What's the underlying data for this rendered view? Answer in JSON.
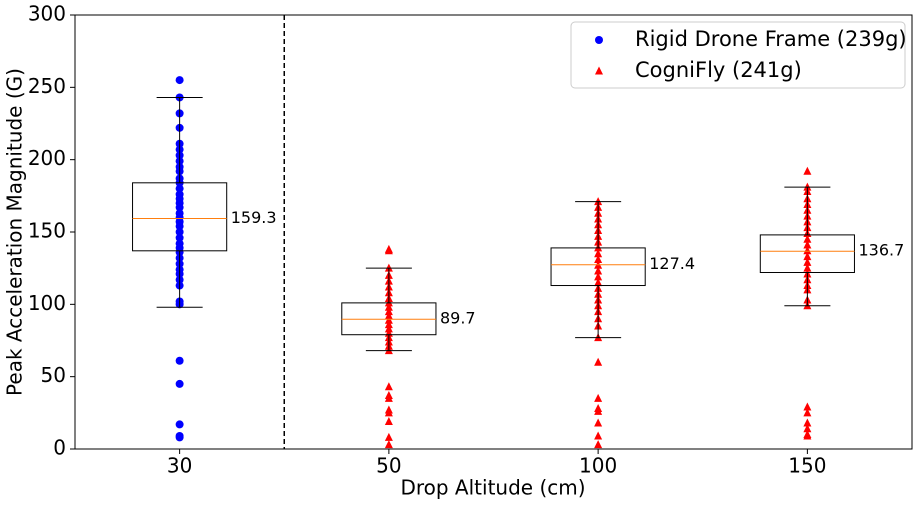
{
  "chart_data": {
    "type": "box",
    "xlabel": "Drop Altitude (cm)",
    "ylabel": "Peak Acceleration Magnitude (G)",
    "categories": [
      "30",
      "50",
      "100",
      "150"
    ],
    "ylim": [
      0,
      300
    ],
    "yticks": [
      0,
      50,
      100,
      150,
      200,
      250,
      300
    ],
    "legend": "upper right",
    "median_color": "#ff7f0e",
    "boxes": [
      {
        "whislo": 98,
        "q1": 137,
        "med": 159.3,
        "q3": 184,
        "whishi": 243
      },
      {
        "whislo": 68,
        "q1": 79,
        "med": 89.7,
        "q3": 101,
        "whishi": 125
      },
      {
        "whislo": 77,
        "q1": 113,
        "med": 127.4,
        "q3": 139,
        "whishi": 171
      },
      {
        "whislo": 99,
        "q1": 122,
        "med": 136.7,
        "q3": 148,
        "whishi": 181
      }
    ],
    "series": [
      {
        "name": "Rigid Drone Frame (239g)",
        "color": "#0000ff",
        "marker": "circle",
        "values": [
          [
            255,
            243,
            232,
            222,
            211,
            207,
            203,
            199,
            195,
            192,
            187,
            184,
            180,
            176,
            173,
            170,
            167,
            163,
            160,
            157,
            154,
            150,
            146,
            142,
            139,
            136,
            132,
            128,
            124,
            121,
            117,
            113,
            102,
            100,
            61,
            45,
            17,
            9,
            8
          ],
          null,
          null,
          null
        ]
      },
      {
        "name": "CogniFly (241g)",
        "color": "#ff0000",
        "marker": "triangle",
        "values": [
          null,
          [
            138,
            137,
            125,
            120,
            116,
            112,
            108,
            104,
            101,
            98,
            95,
            92,
            89,
            86,
            83,
            80,
            77,
            74,
            71,
            68,
            43,
            37,
            35,
            27,
            25,
            19,
            8,
            3
          ],
          [
            171,
            167,
            163,
            159,
            155,
            151,
            147,
            143,
            139,
            135,
            131,
            127,
            123,
            119,
            115,
            111,
            107,
            103,
            99,
            95,
            90,
            85,
            77,
            60,
            35,
            28,
            26,
            18,
            9,
            3
          ],
          [
            192,
            181,
            178,
            173,
            169,
            165,
            161,
            157,
            153,
            149,
            145,
            141,
            137,
            133,
            129,
            125,
            121,
            117,
            113,
            110,
            103,
            99,
            29,
            25,
            18,
            14,
            10,
            9
          ]
        ]
      }
    ]
  }
}
